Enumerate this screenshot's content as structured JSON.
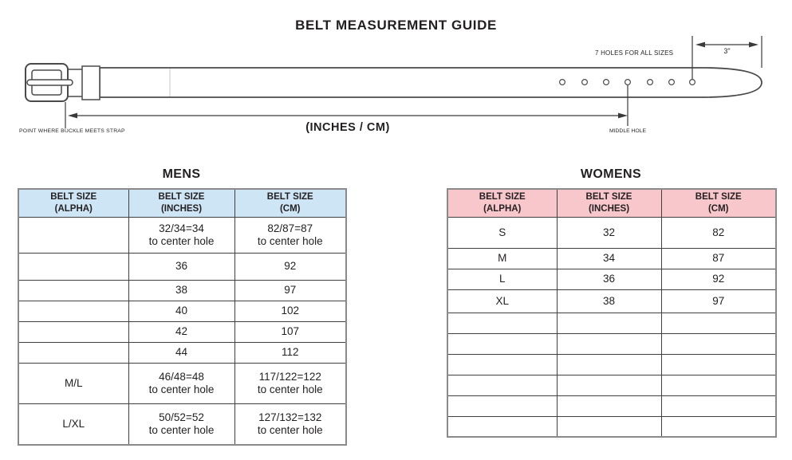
{
  "page": {
    "title": "BELT MEASUREMENT GUIDE"
  },
  "diagram": {
    "hole_count": 7,
    "labels": {
      "seven_holes": "7 HOLES FOR ALL SIZES",
      "three_inches": "3\"",
      "inches_cm": "(INCHES / CM)",
      "buckle_point": "POINT WHERE BUCKLE MEETS STRAP",
      "middle_hole": "MIDDLE HOLE"
    }
  },
  "mens_table": {
    "title": "MENS",
    "header_color": "#cee5f5",
    "columns": [
      "BELT SIZE\n(ALPHA)",
      "BELT SIZE\n(INCHES)",
      "BELT SIZE\n(CM)"
    ],
    "rows": [
      [
        "",
        "32/34=34\nto center hole",
        "82/87=87\nto center hole"
      ],
      [
        "",
        "36",
        "92"
      ],
      [
        "",
        "38",
        "97"
      ],
      [
        "",
        "40",
        "102"
      ],
      [
        "",
        "42",
        "107"
      ],
      [
        "",
        "44",
        "112"
      ],
      [
        "M/L",
        "46/48=48\nto center hole",
        "117/122=122\nto center hole"
      ],
      [
        "L/XL",
        "50/52=52\nto center hole",
        "127/132=132\nto center hole"
      ]
    ]
  },
  "womens_table": {
    "title": "WOMENS",
    "header_color": "#f8c7cc",
    "columns": [
      "BELT SIZE\n(ALPHA)",
      "BELT SIZE\n(INCHES)",
      "BELT SIZE\n(CM)"
    ],
    "rows": [
      [
        "S",
        "32",
        "82"
      ],
      [
        "M",
        "34",
        "87"
      ],
      [
        "L",
        "36",
        "92"
      ],
      [
        "XL",
        "38",
        "97"
      ],
      [
        "",
        "",
        ""
      ],
      [
        "",
        "",
        ""
      ],
      [
        "",
        "",
        ""
      ],
      [
        "",
        "",
        ""
      ],
      [
        "",
        "",
        ""
      ],
      [
        "",
        "",
        ""
      ]
    ]
  }
}
